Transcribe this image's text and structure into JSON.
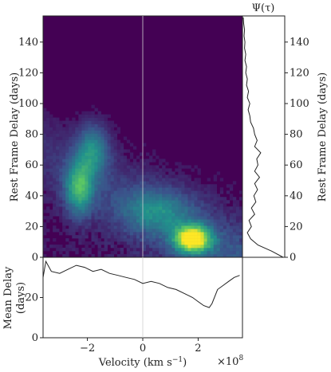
{
  "chart_data": [
    {
      "type": "heatmap",
      "xlabel": "Velocity (km s$^{-1}$)",
      "xlabel_text": "Velocity (km s",
      "xlabel_sup": "−1",
      "xlabel_close": ")",
      "ylabel": "Rest Frame Delay (days)",
      "x_range_1e8": [
        -3.6,
        3.6
      ],
      "y_range_days": [
        0,
        157
      ],
      "x_ticks": [
        -2,
        0,
        2
      ],
      "x_tick_labels": [
        "−2",
        "0",
        "2"
      ],
      "y_ticks": [
        0,
        20,
        40,
        60,
        80,
        100,
        120,
        140
      ],
      "y_tick_labels": [
        "0",
        "20",
        "40",
        "60",
        "80",
        "100",
        "120",
        "140"
      ],
      "x_multiplier": "×10",
      "x_multiplier_exp": "8",
      "colormap": [
        "#440154",
        "#3b528b",
        "#21918c",
        "#5ec962",
        "#fde725"
      ],
      "features": [
        {
          "x": -2.3,
          "y": 45,
          "spread_x": 0.35,
          "spread_y": 12,
          "intensity": 0.55
        },
        {
          "x": -1.8,
          "y": 70,
          "spread_x": 0.4,
          "spread_y": 12,
          "intensity": 0.4
        },
        {
          "x": 1.8,
          "y": 12,
          "spread_x": 0.45,
          "spread_y": 6,
          "intensity": 1.0
        },
        {
          "x": 0.5,
          "y": 30,
          "spread_x": 0.9,
          "spread_y": 10,
          "intensity": 0.3
        }
      ]
    },
    {
      "type": "line",
      "title": "Ψ(τ)",
      "ylabel": "Rest Frame Delay (days)",
      "y_ticks": [
        0,
        20,
        40,
        60,
        80,
        100,
        120,
        140
      ],
      "y_tick_labels": [
        "0",
        "20",
        "40",
        "60",
        "80",
        "100",
        "120",
        "140"
      ],
      "tau": [
        0,
        4,
        8,
        12,
        16,
        20,
        24,
        28,
        32,
        36,
        40,
        44,
        48,
        52,
        56,
        60,
        64,
        68,
        72,
        76,
        80,
        84,
        88,
        92,
        96,
        100,
        104,
        108,
        112,
        116,
        120,
        124,
        128,
        132,
        136,
        140,
        144,
        148,
        152,
        156
      ],
      "psi": [
        1.0,
        0.72,
        0.38,
        0.2,
        0.12,
        0.22,
        0.16,
        0.3,
        0.22,
        0.33,
        0.28,
        0.37,
        0.3,
        0.42,
        0.3,
        0.38,
        0.35,
        0.45,
        0.3,
        0.36,
        0.3,
        0.27,
        0.2,
        0.18,
        0.14,
        0.18,
        0.12,
        0.15,
        0.1,
        0.12,
        0.08,
        0.1,
        0.06,
        0.08,
        0.05,
        0.06,
        0.04,
        0.05,
        0.03,
        0.02
      ]
    },
    {
      "type": "line",
      "ylabel": "Mean Delay (days)",
      "ylabel_line1": "Mean Delay",
      "ylabel_line2": "(days)",
      "y_ticks": [
        0,
        20
      ],
      "y_tick_labels": [
        "0",
        "20"
      ],
      "ylim": [
        0,
        40
      ],
      "x": [
        -3.6,
        -3.5,
        -3.3,
        -3.0,
        -2.7,
        -2.4,
        -2.1,
        -1.8,
        -1.5,
        -1.2,
        -0.9,
        -0.6,
        -0.3,
        0.0,
        0.3,
        0.6,
        0.9,
        1.2,
        1.5,
        1.8,
        2.0,
        2.2,
        2.4,
        2.5,
        2.7,
        2.9,
        3.1,
        3.3,
        3.5
      ],
      "y": [
        30,
        38,
        33,
        32,
        34,
        36,
        35,
        33,
        34,
        32,
        31,
        30,
        29,
        27,
        28,
        27,
        25,
        24,
        22,
        20,
        18,
        16,
        15,
        17,
        24,
        26,
        28,
        30,
        31
      ]
    }
  ]
}
